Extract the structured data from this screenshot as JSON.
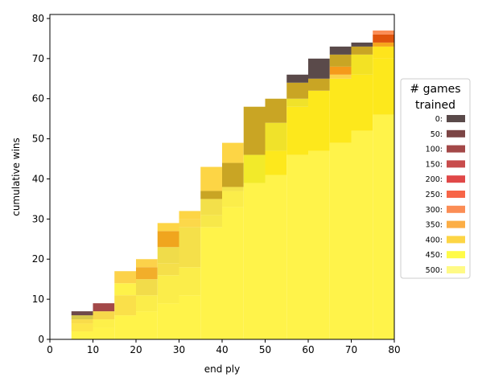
{
  "chart_data": {
    "type": "heatmap",
    "title": "",
    "xlabel": "end ply",
    "ylabel": "cumulative wins",
    "xlim": [
      0,
      80
    ],
    "ylim": [
      0,
      81
    ],
    "xticks": [
      0,
      10,
      20,
      30,
      40,
      50,
      60,
      70,
      80
    ],
    "yticks": [
      0,
      10,
      20,
      30,
      40,
      50,
      60,
      70,
      80
    ],
    "bin_width_x": 5,
    "legend": {
      "title_lines": [
        "# games",
        "trained"
      ],
      "placement": "right",
      "entries": [
        {
          "label": "0:",
          "color": "#5a4a4a"
        },
        {
          "label": "50:",
          "color": "#7c4545"
        },
        {
          "label": "100:",
          "color": "#a34848"
        },
        {
          "label": "150:",
          "color": "#c84c4c"
        },
        {
          "label": "200:",
          "color": "#e04848"
        },
        {
          "label": "250:",
          "color": "#f76548"
        },
        {
          "label": "300:",
          "color": "#fb8d55"
        },
        {
          "label": "350:",
          "color": "#fcae45"
        },
        {
          "label": "400:",
          "color": "#fdd545"
        },
        {
          "label": "450:",
          "color": "#fffb48"
        },
        {
          "label": "500:",
          "color": "#fffa86"
        }
      ]
    },
    "cells": [
      {
        "x0": 5,
        "x1": 10,
        "y0": 0,
        "y1": 2,
        "color": "#fff34a"
      },
      {
        "x0": 5,
        "x1": 10,
        "y0": 2,
        "y1": 4,
        "color": "#fde64a"
      },
      {
        "x0": 5,
        "x1": 10,
        "y0": 4,
        "y1": 5,
        "color": "#f9dc4a"
      },
      {
        "x0": 5,
        "x1": 10,
        "y0": 5,
        "y1": 6,
        "color": "#d7c94a"
      },
      {
        "x0": 5,
        "x1": 10,
        "y0": 6,
        "y1": 7,
        "color": "#6e4a4a"
      },
      {
        "x0": 10,
        "x1": 15,
        "y0": 0,
        "y1": 3,
        "color": "#fff34a"
      },
      {
        "x0": 10,
        "x1": 15,
        "y0": 3,
        "y1": 5,
        "color": "#fdf04a"
      },
      {
        "x0": 10,
        "x1": 15,
        "y0": 5,
        "y1": 7,
        "color": "#f7d84a"
      },
      {
        "x0": 10,
        "x1": 15,
        "y0": 7,
        "y1": 9,
        "color": "#a34848"
      },
      {
        "x0": 15,
        "x1": 20,
        "y0": 0,
        "y1": 6,
        "color": "#fff34a"
      },
      {
        "x0": 15,
        "x1": 20,
        "y0": 6,
        "y1": 11,
        "color": "#fae04a"
      },
      {
        "x0": 15,
        "x1": 20,
        "y0": 11,
        "y1": 14,
        "color": "#fef24a"
      },
      {
        "x0": 15,
        "x1": 20,
        "y0": 14,
        "y1": 17,
        "color": "#fcd24a"
      },
      {
        "x0": 20,
        "x1": 25,
        "y0": 0,
        "y1": 7,
        "color": "#fff34a"
      },
      {
        "x0": 20,
        "x1": 25,
        "y0": 7,
        "y1": 11,
        "color": "#fbed4a"
      },
      {
        "x0": 20,
        "x1": 25,
        "y0": 11,
        "y1": 15,
        "color": "#f2dc4a"
      },
      {
        "x0": 20,
        "x1": 25,
        "y0": 15,
        "y1": 18,
        "color": "#f2ae2a"
      },
      {
        "x0": 20,
        "x1": 25,
        "y0": 18,
        "y1": 20,
        "color": "#fcd24a"
      },
      {
        "x0": 25,
        "x1": 30,
        "y0": 0,
        "y1": 9,
        "color": "#fff34a"
      },
      {
        "x0": 25,
        "x1": 30,
        "y0": 9,
        "y1": 16,
        "color": "#fbed4a"
      },
      {
        "x0": 25,
        "x1": 30,
        "y0": 16,
        "y1": 19,
        "color": "#f5df4a"
      },
      {
        "x0": 25,
        "x1": 30,
        "y0": 19,
        "y1": 23,
        "color": "#f0dc4a"
      },
      {
        "x0": 25,
        "x1": 30,
        "y0": 23,
        "y1": 27,
        "color": "#f0a51e"
      },
      {
        "x0": 25,
        "x1": 30,
        "y0": 27,
        "y1": 29,
        "color": "#fdd545"
      },
      {
        "x0": 30,
        "x1": 35,
        "y0": 0,
        "y1": 11,
        "color": "#fff34a"
      },
      {
        "x0": 30,
        "x1": 35,
        "y0": 11,
        "y1": 18,
        "color": "#fbed4a"
      },
      {
        "x0": 30,
        "x1": 35,
        "y0": 18,
        "y1": 28,
        "color": "#f5e04a"
      },
      {
        "x0": 30,
        "x1": 35,
        "y0": 28,
        "y1": 30,
        "color": "#fcd84a"
      },
      {
        "x0": 30,
        "x1": 35,
        "y0": 30,
        "y1": 32,
        "color": "#fdd545"
      },
      {
        "x0": 35,
        "x1": 40,
        "y0": 0,
        "y1": 28,
        "color": "#fff34a"
      },
      {
        "x0": 35,
        "x1": 40,
        "y0": 28,
        "y1": 31,
        "color": "#f7e84a"
      },
      {
        "x0": 35,
        "x1": 40,
        "y0": 31,
        "y1": 35,
        "color": "#f3e04a"
      },
      {
        "x0": 35,
        "x1": 40,
        "y0": 35,
        "y1": 37,
        "color": "#c9a524"
      },
      {
        "x0": 35,
        "x1": 40,
        "y0": 37,
        "y1": 43,
        "color": "#fdd545"
      },
      {
        "x0": 40,
        "x1": 45,
        "y0": 0,
        "y1": 33,
        "color": "#fff34a"
      },
      {
        "x0": 40,
        "x1": 45,
        "y0": 33,
        "y1": 37,
        "color": "#fbed4a"
      },
      {
        "x0": 40,
        "x1": 45,
        "y0": 37,
        "y1": 38,
        "color": "#f3e24a"
      },
      {
        "x0": 40,
        "x1": 45,
        "y0": 38,
        "y1": 44,
        "color": "#c9a524"
      },
      {
        "x0": 40,
        "x1": 45,
        "y0": 44,
        "y1": 49,
        "color": "#fdd545"
      },
      {
        "x0": 45,
        "x1": 50,
        "y0": 0,
        "y1": 39,
        "color": "#fff34a"
      },
      {
        "x0": 45,
        "x1": 50,
        "y0": 39,
        "y1": 46,
        "color": "#f2ea2a"
      },
      {
        "x0": 45,
        "x1": 50,
        "y0": 46,
        "y1": 58,
        "color": "#c9a524"
      },
      {
        "x0": 50,
        "x1": 55,
        "y0": 0,
        "y1": 41,
        "color": "#fff34a"
      },
      {
        "x0": 50,
        "x1": 55,
        "y0": 41,
        "y1": 47,
        "color": "#fde81c"
      },
      {
        "x0": 50,
        "x1": 55,
        "y0": 47,
        "y1": 54,
        "color": "#f0e22a"
      },
      {
        "x0": 50,
        "x1": 55,
        "y0": 54,
        "y1": 60,
        "color": "#c9a524"
      },
      {
        "x0": 55,
        "x1": 60,
        "y0": 0,
        "y1": 46,
        "color": "#fff34a"
      },
      {
        "x0": 55,
        "x1": 60,
        "y0": 46,
        "y1": 58,
        "color": "#fde81c"
      },
      {
        "x0": 55,
        "x1": 60,
        "y0": 58,
        "y1": 60,
        "color": "#f0e22a"
      },
      {
        "x0": 55,
        "x1": 60,
        "y0": 60,
        "y1": 64,
        "color": "#c9a524"
      },
      {
        "x0": 55,
        "x1": 60,
        "y0": 64,
        "y1": 66,
        "color": "#5a4a4a"
      },
      {
        "x0": 60,
        "x1": 65,
        "y0": 0,
        "y1": 47,
        "color": "#fff34a"
      },
      {
        "x0": 60,
        "x1": 65,
        "y0": 47,
        "y1": 62,
        "color": "#fde81c"
      },
      {
        "x0": 60,
        "x1": 65,
        "y0": 62,
        "y1": 65,
        "color": "#c9a524"
      },
      {
        "x0": 60,
        "x1": 65,
        "y0": 65,
        "y1": 70,
        "color": "#5a4a4a"
      },
      {
        "x0": 65,
        "x1": 70,
        "y0": 0,
        "y1": 49,
        "color": "#fff34a"
      },
      {
        "x0": 65,
        "x1": 70,
        "y0": 49,
        "y1": 65,
        "color": "#fde81c"
      },
      {
        "x0": 65,
        "x1": 70,
        "y0": 65,
        "y1": 66,
        "color": "#fcd24a"
      },
      {
        "x0": 65,
        "x1": 70,
        "y0": 66,
        "y1": 68,
        "color": "#f59a1a"
      },
      {
        "x0": 65,
        "x1": 70,
        "y0": 68,
        "y1": 71,
        "color": "#c9a524"
      },
      {
        "x0": 65,
        "x1": 70,
        "y0": 71,
        "y1": 73,
        "color": "#5a4a4a"
      },
      {
        "x0": 70,
        "x1": 75,
        "y0": 0,
        "y1": 52,
        "color": "#fff34a"
      },
      {
        "x0": 70,
        "x1": 75,
        "y0": 52,
        "y1": 66,
        "color": "#fde81c"
      },
      {
        "x0": 70,
        "x1": 75,
        "y0": 66,
        "y1": 71,
        "color": "#f3e224"
      },
      {
        "x0": 70,
        "x1": 75,
        "y0": 71,
        "y1": 73,
        "color": "#c9a524"
      },
      {
        "x0": 70,
        "x1": 75,
        "y0": 73,
        "y1": 74,
        "color": "#5a4a4a"
      },
      {
        "x0": 75,
        "x1": 80,
        "y0": 0,
        "y1": 56,
        "color": "#fff34a"
      },
      {
        "x0": 75,
        "x1": 80,
        "y0": 56,
        "y1": 70,
        "color": "#fde81c"
      },
      {
        "x0": 75,
        "x1": 80,
        "y0": 70,
        "y1": 73,
        "color": "#fee41c"
      },
      {
        "x0": 75,
        "x1": 80,
        "y0": 73,
        "y1": 74,
        "color": "#f7a51c"
      },
      {
        "x0": 75,
        "x1": 80,
        "y0": 74,
        "y1": 76,
        "color": "#e0540c"
      },
      {
        "x0": 75,
        "x1": 80,
        "y0": 76,
        "y1": 77,
        "color": "#fb8d55"
      }
    ]
  }
}
